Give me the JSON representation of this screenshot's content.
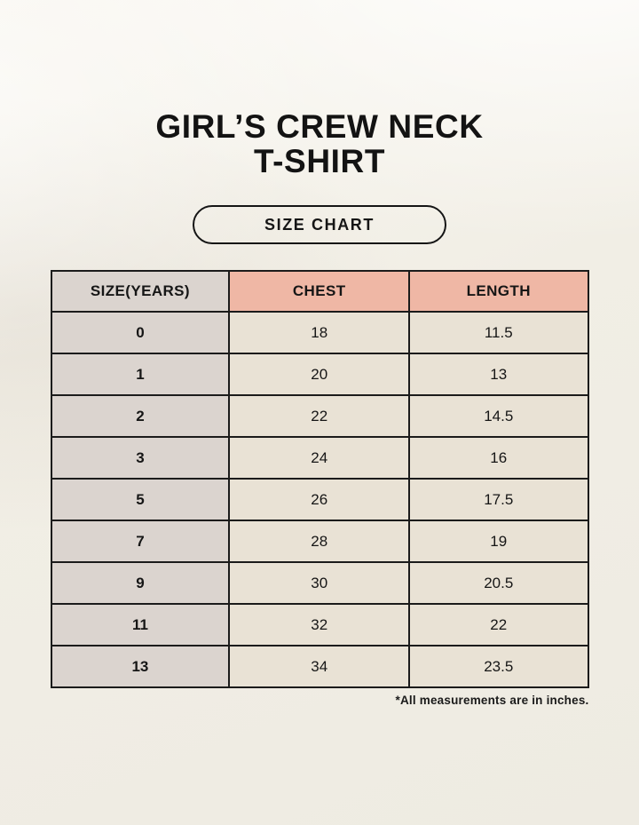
{
  "page": {
    "title_line1": "GIRL’S CREW NECK",
    "title_line2": "T-SHIRT",
    "badge_label": "SIZE CHART",
    "footnote": "*All measurements are in inches."
  },
  "colors": {
    "background": "#f1eee5",
    "table_border": "#1b1b1b",
    "header_pink": "#efb7a5",
    "size_column_gray": "#dbd4cf",
    "cell_cream": "#e9e2d5",
    "text": "#161616"
  },
  "chart_data": {
    "type": "table",
    "title": "GIRL’S CREW NECK T-SHIRT SIZE CHART",
    "units": "inches",
    "columns": [
      "SIZE(YEARS)",
      "CHEST",
      "LENGTH"
    ],
    "rows": [
      [
        "0",
        "18",
        "11.5"
      ],
      [
        "1",
        "20",
        "13"
      ],
      [
        "2",
        "22",
        "14.5"
      ],
      [
        "3",
        "24",
        "16"
      ],
      [
        "5",
        "26",
        "17.5"
      ],
      [
        "7",
        "28",
        "19"
      ],
      [
        "9",
        "30",
        "20.5"
      ],
      [
        "11",
        "32",
        "22"
      ],
      [
        "13",
        "34",
        "23.5"
      ]
    ]
  }
}
